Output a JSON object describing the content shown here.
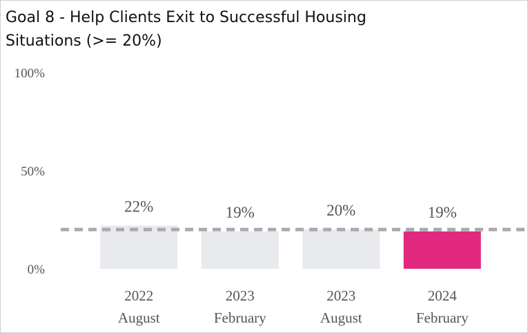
{
  "chart_data": {
    "type": "bar",
    "title": [
      "Goal 8 - Help Clients Exit to Successful Housing",
      "Situations (>= 20%)"
    ],
    "categories": [
      [
        "2022",
        "August"
      ],
      [
        "2023",
        "February"
      ],
      [
        "2023",
        "August"
      ],
      [
        "2024",
        "February"
      ]
    ],
    "values": [
      22,
      19,
      20,
      19
    ],
    "value_labels": [
      "22%",
      "19%",
      "20%",
      "19%"
    ],
    "colors": [
      "#e8eaed",
      "#e8eaed",
      "#e8eaed",
      "#e0297f"
    ],
    "ylim": [
      0,
      100
    ],
    "yticks": [
      {
        "value": 0,
        "label": "0%"
      },
      {
        "value": 50,
        "label": "50%"
      },
      {
        "value": 100,
        "label": "100%"
      }
    ],
    "target_line": 20,
    "target_color": "#aaaaaa"
  }
}
